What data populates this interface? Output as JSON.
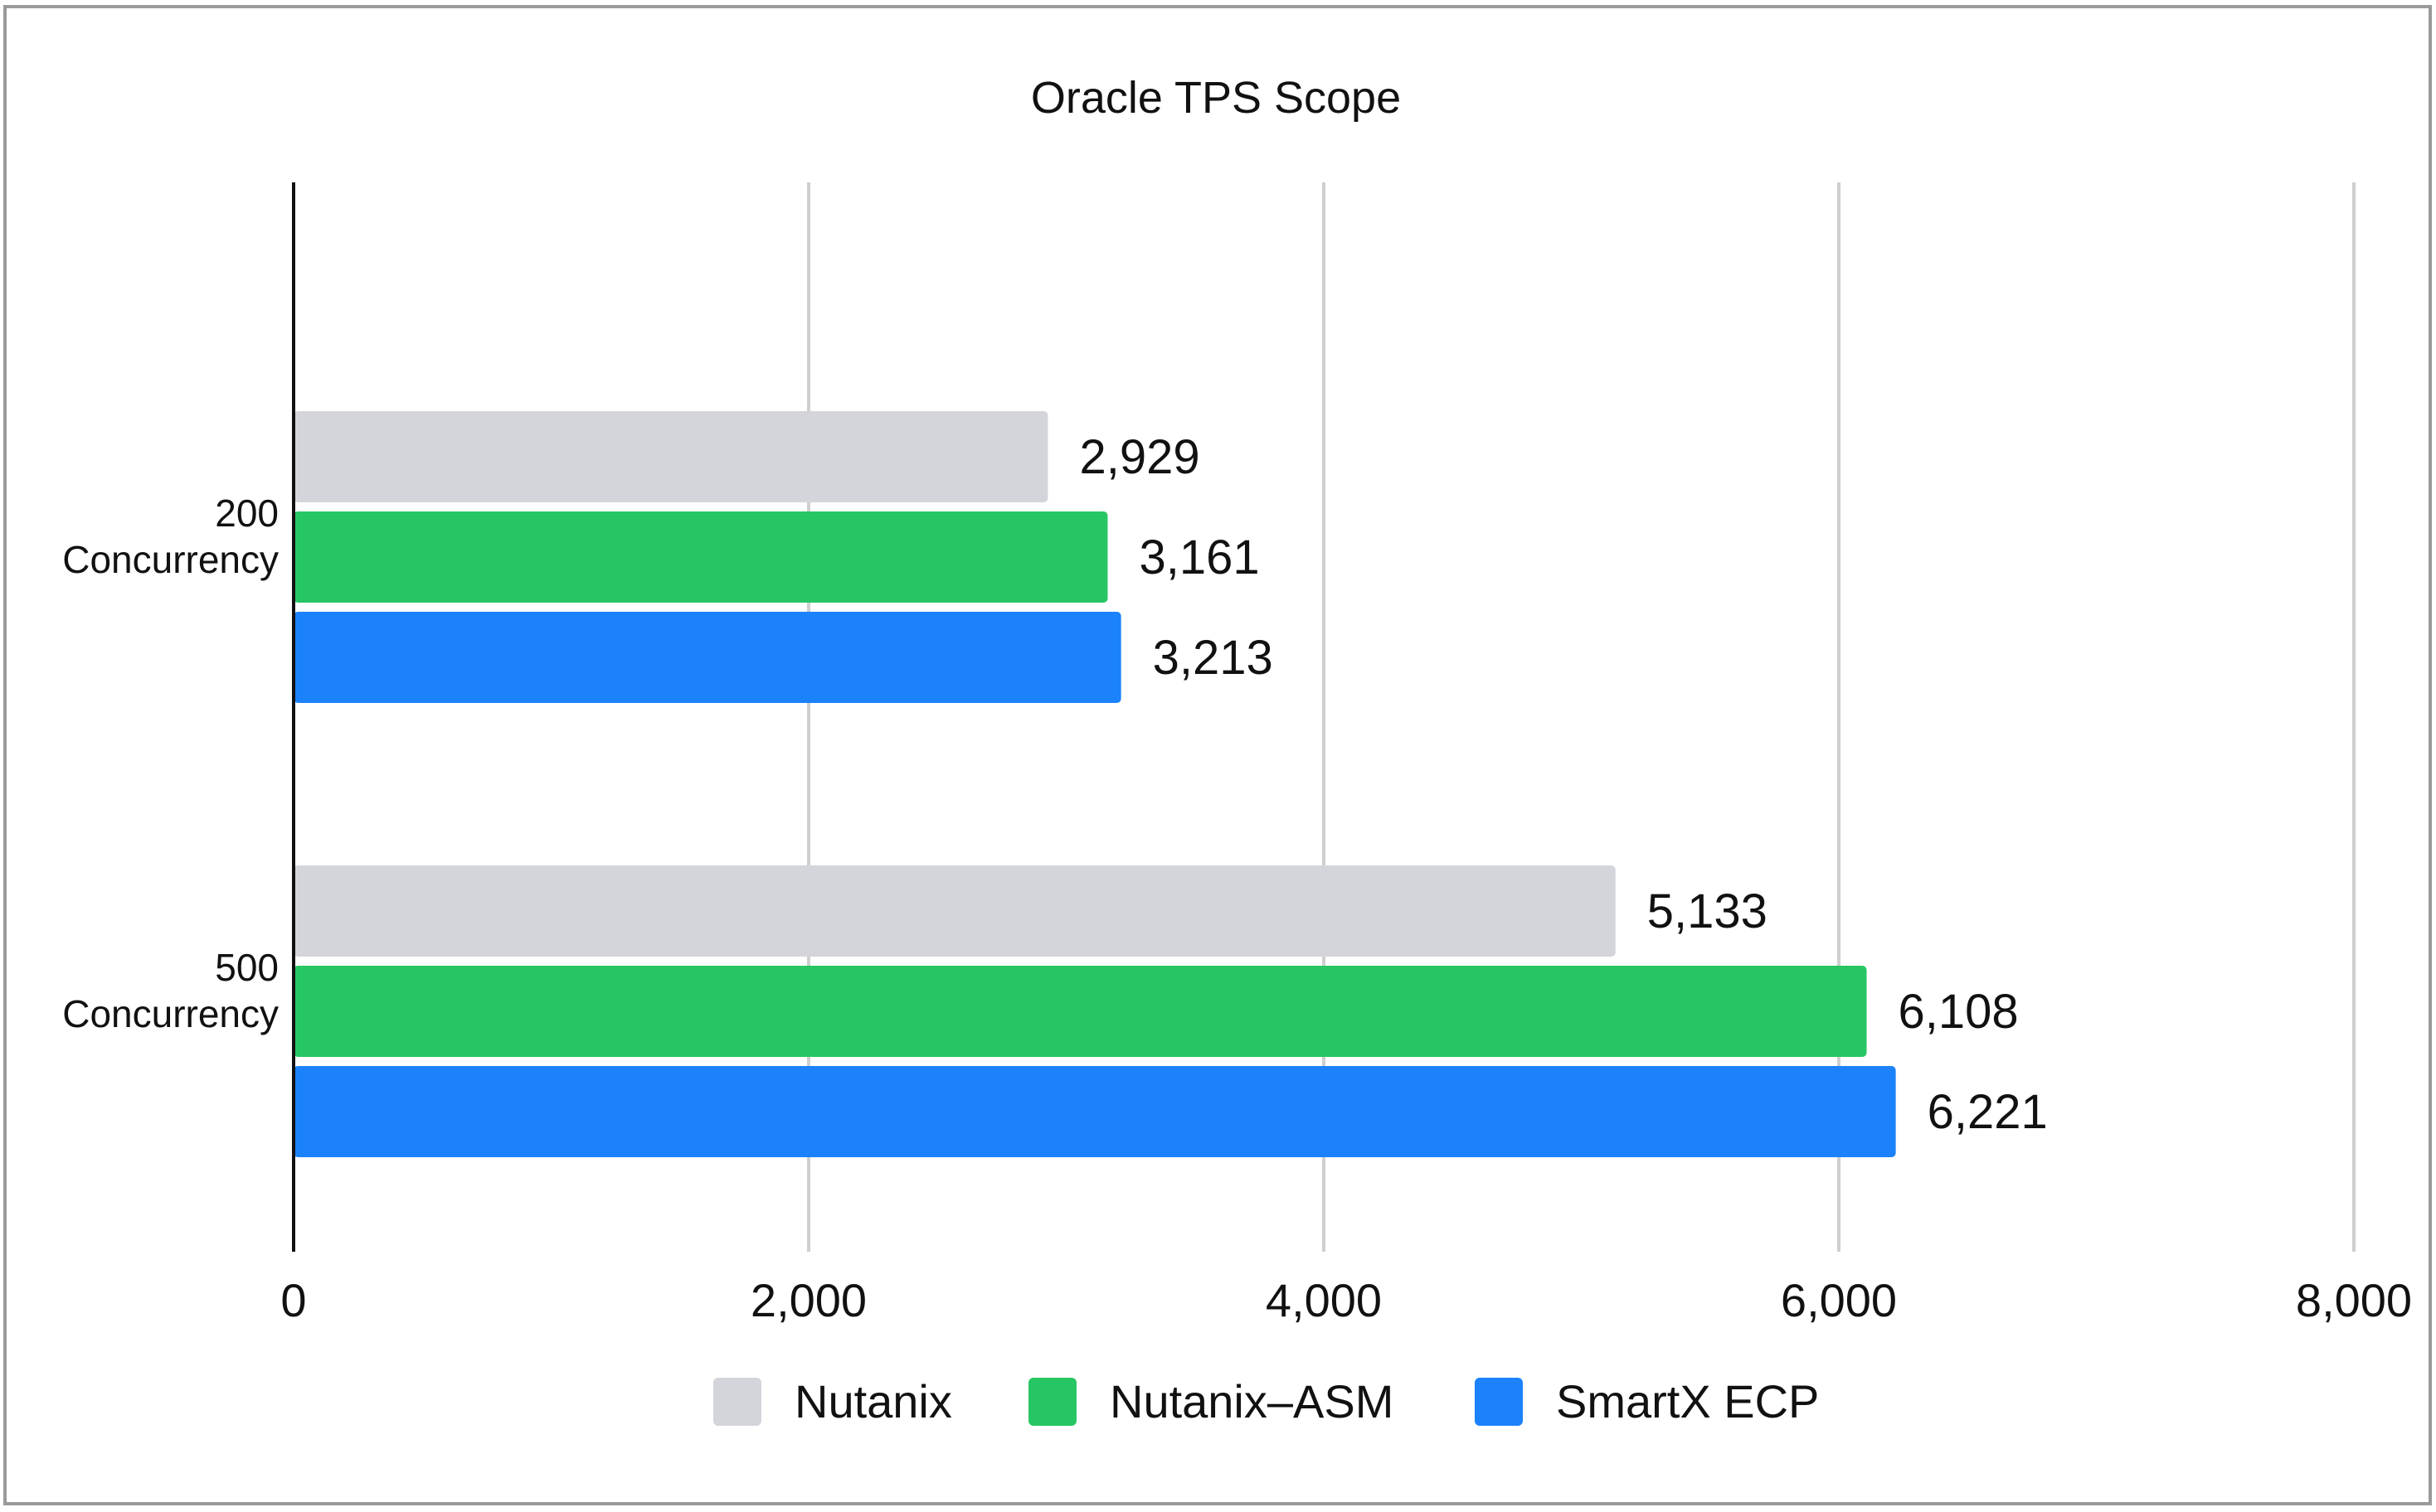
{
  "chart_data": {
    "type": "bar",
    "orientation": "horizontal",
    "title": "Oracle TPS Scope",
    "xlabel": "",
    "ylabel": "",
    "categories": [
      [
        "200",
        "Concurrency"
      ],
      [
        "500",
        "Concurrency"
      ]
    ],
    "series": [
      {
        "name": "Nutanix",
        "color": "#d3d5db",
        "values": [
          2929,
          5133
        ],
        "labels": [
          "2,929",
          "5,133"
        ]
      },
      {
        "name": "Nutanix–ASM",
        "color": "#27c665",
        "values": [
          3161,
          6108
        ],
        "labels": [
          "3,161",
          "6,108"
        ]
      },
      {
        "name": "SmartX ECP",
        "color": "#1b82fb",
        "values": [
          3213,
          6221
        ],
        "labels": [
          "3,213",
          "6,221"
        ]
      }
    ],
    "xlim": [
      0,
      8000
    ],
    "x_ticks": [
      0,
      2000,
      4000,
      6000,
      8000
    ],
    "x_tick_labels": [
      "0",
      "2,000",
      "4,000",
      "6,000",
      "8,000"
    ],
    "grid": "vertical",
    "legend_position": "bottom-center"
  }
}
